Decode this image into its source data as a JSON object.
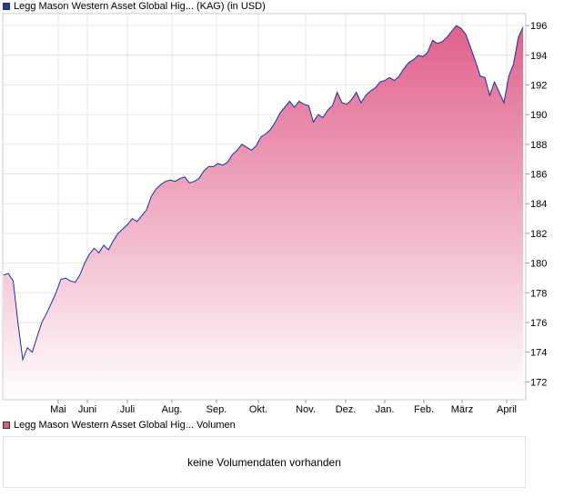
{
  "legend": {
    "price_label": "Legg Mason Western Asset Global Hig... (KAG) (in USD)",
    "volume_label": "Legg Mason Western Asset Global Hig... Volumen",
    "price_swatch_color": "#1f3f9f",
    "volume_swatch_color": "#d9607f"
  },
  "volume": {
    "message": "keine Volumendaten vorhanden"
  },
  "colors": {
    "line": "#1a2fa0",
    "fill_top": "#e0608a",
    "fill_bottom": "#ffffff",
    "grid": "#e6e6e6",
    "frame": "#cccccc"
  },
  "chart_data": {
    "type": "area",
    "title": "",
    "xlabel": "",
    "ylabel": "",
    "ylim": [
      170.8,
      196.8
    ],
    "y_ticks": [
      172,
      174,
      176,
      178,
      180,
      182,
      184,
      186,
      188,
      190,
      192,
      194,
      196
    ],
    "x_tick_labels": [
      "Mai",
      "Juni",
      "Juli",
      "Aug.",
      "Sep.",
      "Okt.",
      "Nov.",
      "Dez.",
      "Jan.",
      "Feb.",
      "März",
      "April"
    ],
    "grid": true,
    "series": [
      {
        "values": [
          179.2,
          179.3,
          178.8,
          176.0,
          173.5,
          174.3,
          174.0,
          175.0,
          176.0,
          176.6,
          177.3,
          178.0,
          178.9,
          179.0,
          178.8,
          178.7,
          179.2,
          180.0,
          180.6,
          181.0,
          180.7,
          181.2,
          180.9,
          181.5,
          182.0,
          182.3,
          182.6,
          183.0,
          182.8,
          183.2,
          183.6,
          184.5,
          185.0,
          185.3,
          185.5,
          185.6,
          185.5,
          185.7,
          185.8,
          185.4,
          185.5,
          185.7,
          186.2,
          186.5,
          186.5,
          186.7,
          186.6,
          186.8,
          187.3,
          187.6,
          188.0,
          187.8,
          187.6,
          187.9,
          188.5,
          188.7,
          189.0,
          189.5,
          190.1,
          190.5,
          190.9,
          190.5,
          190.9,
          190.7,
          190.6,
          189.5,
          190.0,
          189.8,
          190.3,
          190.6,
          191.5,
          190.8,
          190.7,
          191.0,
          191.5,
          190.8,
          191.3,
          191.6,
          191.8,
          192.2,
          192.3,
          192.5,
          192.3,
          192.6,
          193.1,
          193.5,
          193.7,
          194.0,
          193.9,
          194.2,
          195.0,
          194.8,
          194.9,
          195.2,
          195.6,
          196.0,
          195.8,
          195.4,
          194.5,
          193.6,
          192.6,
          192.5,
          191.3,
          192.2,
          191.5,
          190.8,
          192.6,
          193.4,
          195.2,
          195.9
        ]
      }
    ]
  }
}
